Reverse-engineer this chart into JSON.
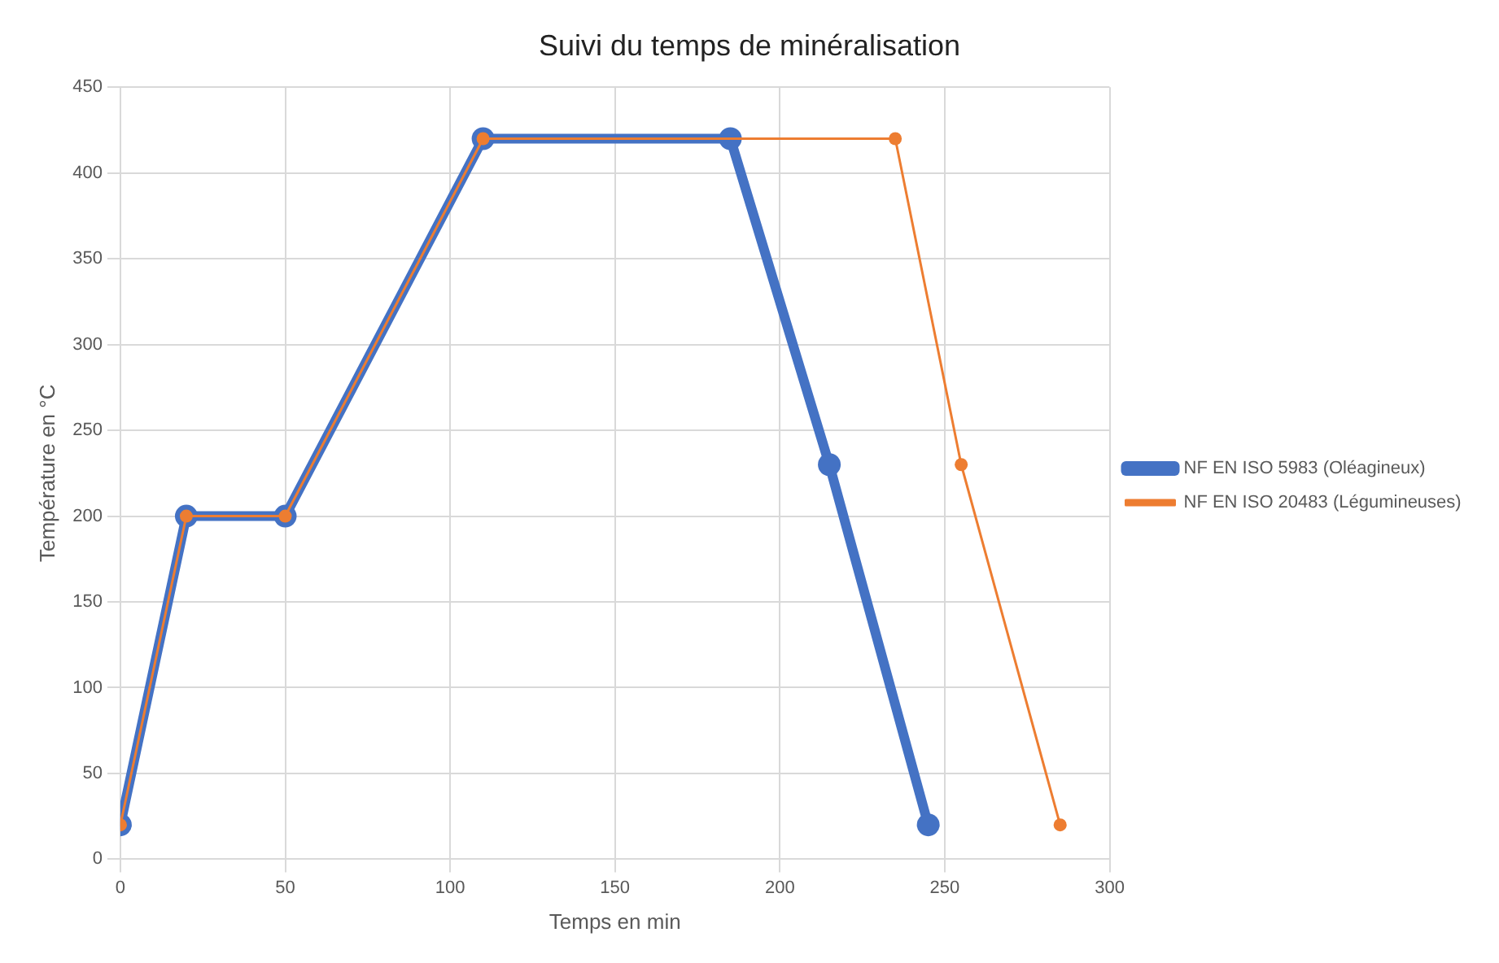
{
  "chart_data": {
    "type": "line",
    "title": "Suivi du temps de minéralisation",
    "xlabel": "Temps en min",
    "ylabel": "Température en °C",
    "series": [
      {
        "name": "NF EN ISO 5983 (Oléagineux)",
        "color": "#4472c4",
        "x": [
          0,
          20,
          50,
          110,
          185,
          215,
          245
        ],
        "values": [
          20,
          200,
          200,
          420,
          420,
          230,
          20
        ]
      },
      {
        "name": "NF EN ISO 20483 (Légumineuses)",
        "color": "#ed7d31",
        "x": [
          0,
          20,
          50,
          110,
          235,
          255,
          285
        ],
        "values": [
          20,
          200,
          200,
          420,
          420,
          230,
          20
        ]
      }
    ],
    "xlim": [
      0,
      300
    ],
    "xticks": [
      0,
      50,
      100,
      150,
      200,
      250,
      300
    ],
    "ylim": [
      0,
      450
    ],
    "yticks": [
      0,
      50,
      100,
      150,
      200,
      250,
      300,
      350,
      400,
      450
    ],
    "grid": true,
    "legend": "right",
    "marker": "circle",
    "line_style": "solid"
  }
}
